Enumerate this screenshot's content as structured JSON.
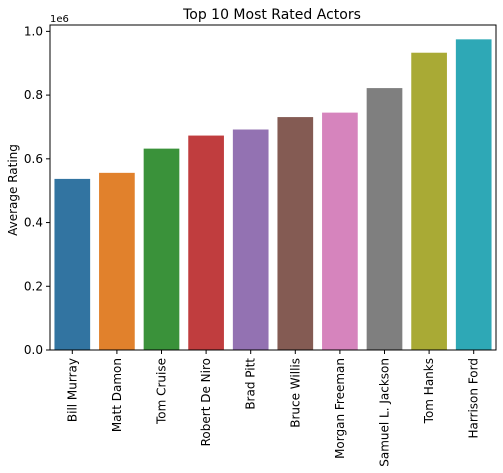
{
  "chart_data": {
    "type": "bar",
    "title": "Top 10 Most Rated Actors",
    "xlabel": "",
    "ylabel": "Average Rating",
    "y_multiplier_label": "1e6",
    "ylim": [
      0,
      1.02
    ],
    "yticks": [
      "0.0",
      "0.2",
      "0.4",
      "0.6",
      "0.8",
      "1.0"
    ],
    "categories": [
      "Bill Murray",
      "Matt Damon",
      "Tom Cruise",
      "Robert De Niro",
      "Brad Pitt",
      "Bruce Willis",
      "Morgan Freeman",
      "Samuel L. Jackson",
      "Tom Hanks",
      "Harrison Ford"
    ],
    "values": [
      0.537,
      0.556,
      0.632,
      0.673,
      0.692,
      0.731,
      0.745,
      0.822,
      0.933,
      0.975
    ],
    "colors": [
      "#3274a1",
      "#e1812c",
      "#3a923a",
      "#c03d3e",
      "#9372b2",
      "#845b53",
      "#d684bd",
      "#7f7f7f",
      "#a9aa35",
      "#2ea8b6"
    ],
    "grid": false,
    "legend": "none"
  }
}
